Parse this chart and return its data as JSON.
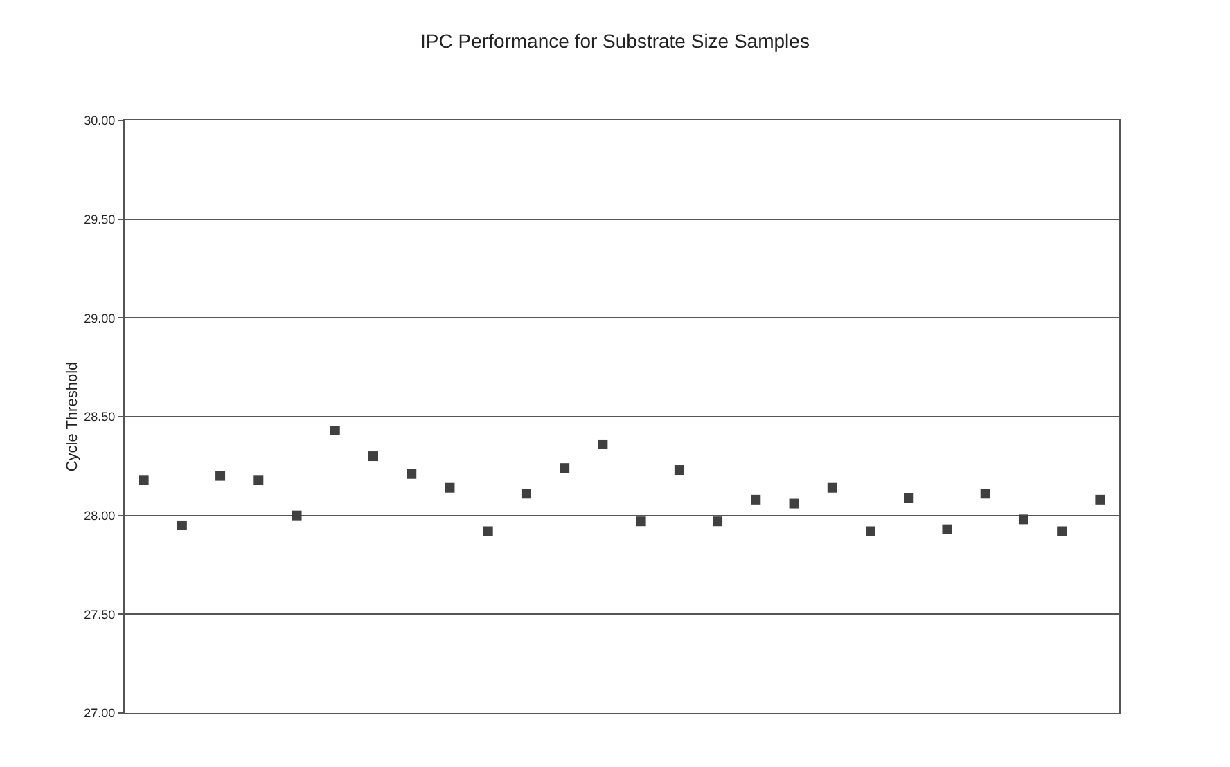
{
  "chart_data": {
    "type": "scatter",
    "title": "IPC Performance for Substrate Size Samples",
    "ylabel": "Cycle Threshold",
    "categories": [
      null,
      null,
      null,
      null,
      null,
      null,
      null,
      null,
      null,
      null,
      null,
      null,
      null,
      null,
      null,
      null,
      null,
      null,
      null,
      null,
      null,
      null,
      null,
      null,
      null,
      null
    ],
    "series": [
      {
        "color": "#404040",
        "values": [
          28.18,
          27.95,
          28.2,
          28.18,
          28.0,
          28.43,
          28.3,
          28.21,
          28.14,
          27.92,
          28.11,
          28.24,
          28.36,
          27.97,
          28.23,
          27.97,
          28.08,
          28.06,
          28.14,
          27.92,
          28.09,
          27.93,
          28.11,
          27.98,
          27.92,
          28.08
        ]
      }
    ],
    "ylim": [
      27,
      30
    ],
    "yticks": [
      {
        "value": 27,
        "label": "27.00"
      },
      {
        "value": 27.5,
        "label": "27.50"
      },
      {
        "value": 28,
        "label": "28.00"
      },
      {
        "value": 28.5,
        "label": "28.50"
      },
      {
        "value": 29,
        "label": "29.00"
      },
      {
        "value": 29.5,
        "label": "29.50"
      },
      {
        "value": 30,
        "label": "30.00"
      }
    ],
    "grid": "y",
    "marker": "square"
  }
}
